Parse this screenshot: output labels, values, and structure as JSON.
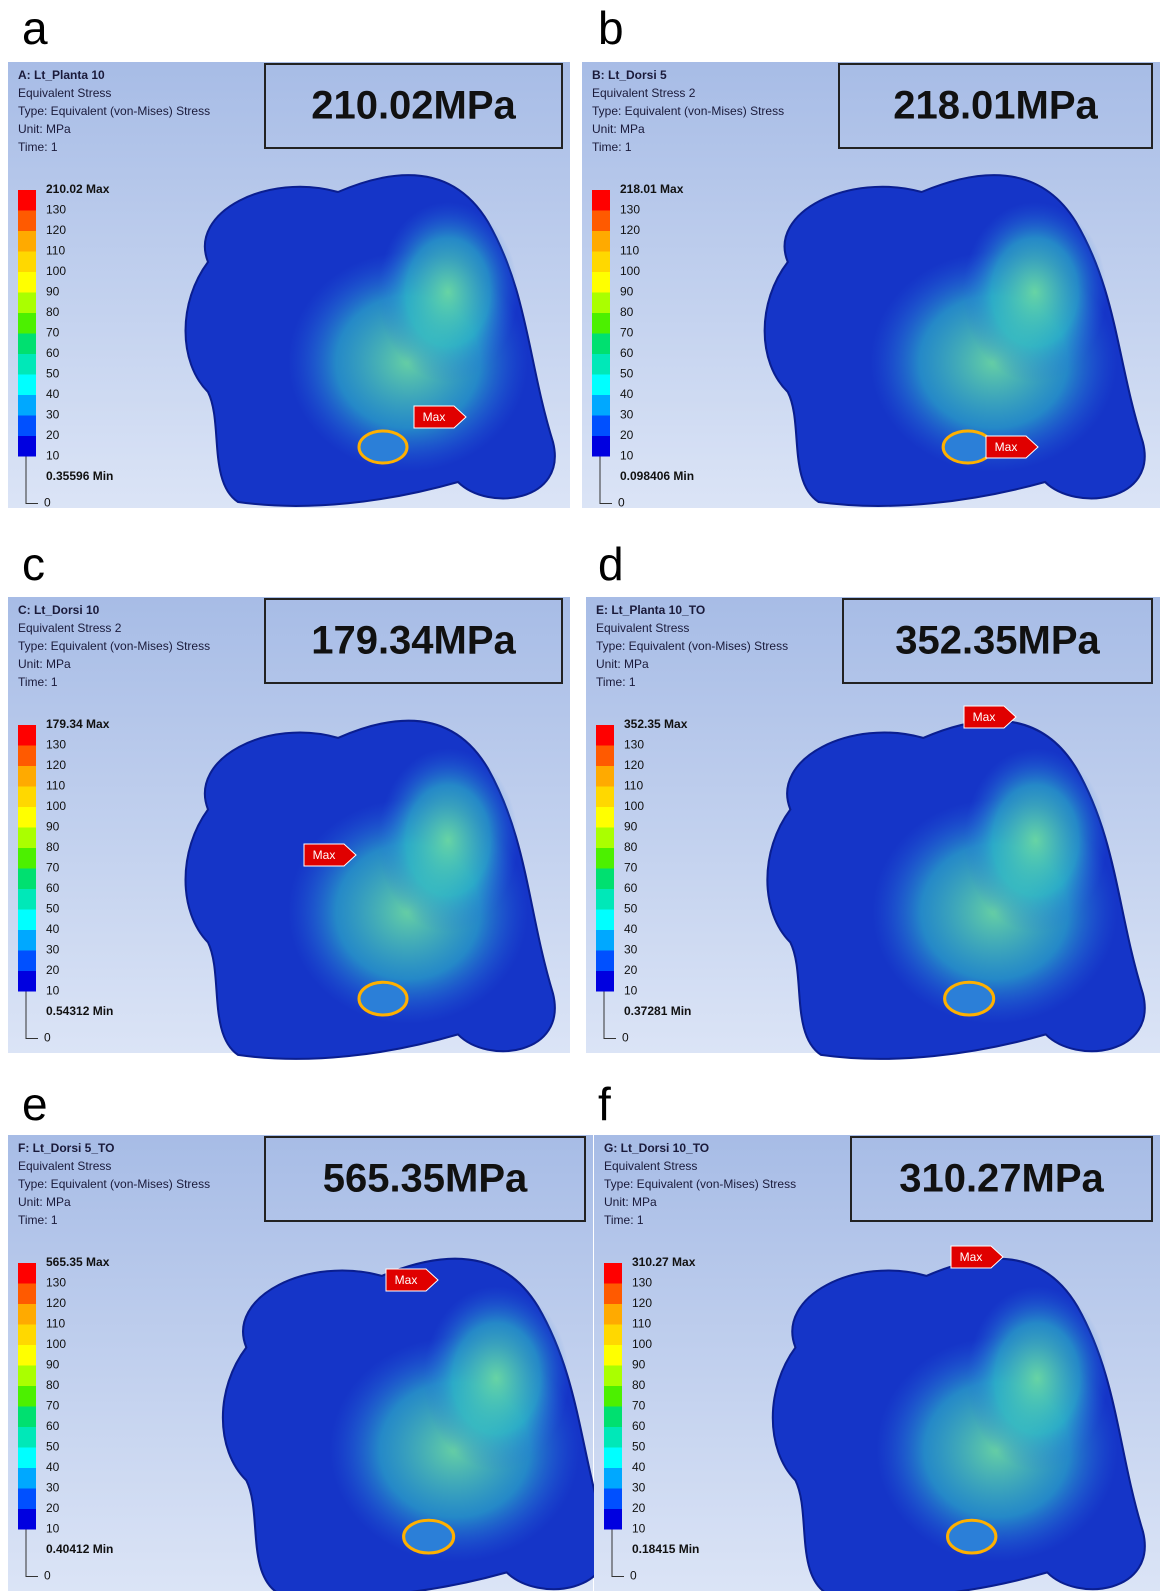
{
  "panels": [
    {
      "letter": "a",
      "header": [
        "A: Lt_Planta 10",
        "Equivalent Stress",
        "Type: Equivalent (von-Mises) Stress",
        "Unit: MPa",
        "Time: 1"
      ],
      "result": "210.02MPa",
      "legend": {
        "max": "210.02 Max",
        "levels": [
          "130",
          "120",
          "110",
          "100",
          "90",
          "80",
          "70",
          "60",
          "50",
          "40",
          "30",
          "20",
          "10"
        ],
        "min": "0.35596 Min",
        "zero": "0"
      },
      "marker": "Max"
    },
    {
      "letter": "b",
      "header": [
        "B: Lt_Dorsi 5",
        "Equivalent Stress 2",
        "Type: Equivalent (von-Mises) Stress",
        "Unit: MPa",
        "Time: 1"
      ],
      "result": "218.01MPa",
      "legend": {
        "max": "218.01 Max",
        "levels": [
          "130",
          "120",
          "110",
          "100",
          "90",
          "80",
          "70",
          "60",
          "50",
          "40",
          "30",
          "20",
          "10"
        ],
        "min": "0.098406 Min",
        "zero": "0"
      },
      "marker": "Max"
    },
    {
      "letter": "c",
      "header": [
        "C: Lt_Dorsi 10",
        "Equivalent Stress 2",
        "Type: Equivalent (von-Mises) Stress",
        "Unit: MPa",
        "Time: 1"
      ],
      "result": "179.34MPa",
      "legend": {
        "max": "179.34 Max",
        "levels": [
          "130",
          "120",
          "110",
          "100",
          "90",
          "80",
          "70",
          "60",
          "50",
          "40",
          "30",
          "20",
          "10"
        ],
        "min": "0.54312 Min",
        "zero": "0"
      },
      "marker": "Max"
    },
    {
      "letter": "d",
      "header": [
        "E: Lt_Planta 10_TO",
        "Equivalent Stress",
        "Type: Equivalent (von-Mises) Stress",
        "Unit: MPa",
        "Time: 1"
      ],
      "result": "352.35MPa",
      "legend": {
        "max": "352.35 Max",
        "levels": [
          "130",
          "120",
          "110",
          "100",
          "90",
          "80",
          "70",
          "60",
          "50",
          "40",
          "30",
          "20",
          "10"
        ],
        "min": "0.37281 Min",
        "zero": "0"
      },
      "marker": "Max"
    },
    {
      "letter": "e",
      "header": [
        "F: Lt_Dorsi 5_TO",
        "Equivalent Stress",
        "Type: Equivalent (von-Mises) Stress",
        "Unit: MPa",
        "Time: 1"
      ],
      "result": "565.35MPa",
      "legend": {
        "max": "565.35 Max",
        "levels": [
          "130",
          "120",
          "110",
          "100",
          "90",
          "80",
          "70",
          "60",
          "50",
          "40",
          "30",
          "20",
          "10"
        ],
        "min": "0.40412 Min",
        "zero": "0"
      },
      "marker": "Max"
    },
    {
      "letter": "f",
      "header": [
        "G: Lt_Dorsi 10_TO",
        "Equivalent Stress",
        "Type: Equivalent (von-Mises) Stress",
        "Unit: MPa",
        "Time: 1"
      ],
      "result": "310.27MPa",
      "legend": {
        "max": "310.27 Max",
        "levels": [
          "130",
          "120",
          "110",
          "100",
          "90",
          "80",
          "70",
          "60",
          "50",
          "40",
          "30",
          "20",
          "10"
        ],
        "min": "0.18415 Min",
        "zero": "0"
      },
      "marker": "Max"
    }
  ]
}
